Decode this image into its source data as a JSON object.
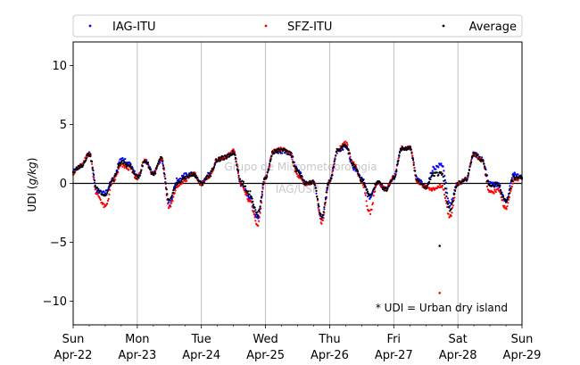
{
  "chart_data": {
    "type": "scatter",
    "title": "",
    "xlabel": "",
    "ylabel": "UDI (g/kg)",
    "ylabel_parts": [
      "UDI (",
      "g/kg",
      ")"
    ],
    "ylim": [
      -12,
      12
    ],
    "yticks": [
      -10,
      -5,
      0,
      5,
      10
    ],
    "ytick_labels": [
      "−10",
      "−5",
      "0",
      "5",
      "10"
    ],
    "xlim": [
      "2018-04-22 00:00",
      "2018-04-29 00:00"
    ],
    "xticks": [
      {
        "day": "Sun",
        "date": "Apr-22"
      },
      {
        "day": "Mon",
        "date": "Apr-23"
      },
      {
        "day": "Tue",
        "date": "Apr-24"
      },
      {
        "day": "Wed",
        "date": "Apr-25"
      },
      {
        "day": "Thu",
        "date": "Apr-26"
      },
      {
        "day": "Fri",
        "date": "Apr-27"
      },
      {
        "day": "Sat",
        "date": "Apr-28"
      },
      {
        "day": "Sun",
        "date": "Apr-29"
      }
    ],
    "grid": "vertical lines at each day",
    "zero_line": true,
    "legend_position": "top, full width, 3 columns",
    "annotation": "* UDI = Urban dry island",
    "watermark": [
      "Grupo de Micrometeorologia",
      "IAG/USP"
    ],
    "series": [
      {
        "name": "IAG-ITU",
        "color": "#0000ff"
      },
      {
        "name": "SFZ-ITU",
        "color": "#ff0000"
      },
      {
        "name": "Average",
        "color": "#000000"
      }
    ],
    "day_profile_hours": [
      0,
      3,
      6,
      9,
      12,
      15,
      18,
      21,
      24
    ],
    "average_profile": [
      [
        1.0,
        1.5,
        2.5,
        -0.5,
        -1.0,
        0.3,
        1.8,
        1.5,
        0.5
      ],
      [
        0.5,
        1.9,
        0.8,
        2.1,
        -1.5,
        0.0,
        0.5,
        0.8,
        0.0
      ],
      [
        0.0,
        0.7,
        2.0,
        2.2,
        2.6,
        0.1,
        -0.8,
        -2.6,
        0.5
      ],
      [
        0.5,
        2.7,
        2.8,
        2.6,
        1.0,
        0.0,
        0.1,
        -2.8,
        0.2
      ],
      [
        0.2,
        2.8,
        3.2,
        1.5,
        0.3,
        -1.0,
        0.1,
        -0.5,
        0.5
      ],
      [
        0.5,
        3.0,
        3.0,
        0.2,
        -0.3,
        0.8,
        0.8,
        -2.2,
        0.0
      ],
      [
        0.0,
        0.3,
        2.5,
        2.0,
        -0.2,
        -0.1,
        -1.5,
        0.5,
        0.5
      ]
    ],
    "iag_offset": [
      [
        0.1,
        0.0,
        0.0,
        -0.2,
        0.2,
        0.1,
        0.3,
        0.2,
        0.1
      ],
      [
        0.0,
        0.0,
        0.0,
        -0.1,
        -0.3,
        0.3,
        0.2,
        0.0,
        0.0
      ],
      [
        0.0,
        0.1,
        0.0,
        0.0,
        0.0,
        -0.2,
        -0.4,
        -0.3,
        0.0
      ],
      [
        0.0,
        0.0,
        -0.1,
        0.0,
        0.2,
        0.0,
        0.0,
        -0.3,
        0.0
      ],
      [
        0.0,
        -0.1,
        -0.1,
        -0.2,
        0.1,
        -0.2,
        0.0,
        0.0,
        0.0
      ],
      [
        0.0,
        0.0,
        0.0,
        0.1,
        0.0,
        0.5,
        0.8,
        0.4,
        0.0
      ],
      [
        0.0,
        0.0,
        0.0,
        0.1,
        0.2,
        0.0,
        0.0,
        0.3,
        0.0
      ]
    ],
    "sfz_offset": [
      [
        -0.1,
        0.0,
        0.0,
        -0.5,
        -1.0,
        -0.1,
        -0.3,
        -0.2,
        -0.1
      ],
      [
        0.0,
        0.0,
        0.0,
        0.1,
        -0.5,
        -0.3,
        -0.2,
        0.0,
        0.0
      ],
      [
        0.0,
        -0.1,
        0.0,
        0.0,
        0.2,
        -0.2,
        -0.6,
        -1.0,
        0.0
      ],
      [
        0.0,
        0.0,
        0.1,
        0.0,
        -0.3,
        0.0,
        0.0,
        -0.5,
        0.0
      ],
      [
        0.0,
        0.1,
        0.2,
        0.2,
        -0.1,
        -1.5,
        0.0,
        0.0,
        0.0
      ],
      [
        0.0,
        0.0,
        0.0,
        -0.1,
        0.0,
        -1.3,
        -1.0,
        -0.6,
        0.0
      ],
      [
        0.0,
        0.0,
        0.0,
        -0.1,
        -0.6,
        -0.5,
        -0.6,
        -0.3,
        0.0
      ]
    ],
    "outliers": [
      {
        "series": "SFZ-ITU",
        "x": "2018-04-27 17:10",
        "y": -9.3
      },
      {
        "series": "Average",
        "x": "2018-04-27 17:10",
        "y": -5.3
      }
    ]
  }
}
